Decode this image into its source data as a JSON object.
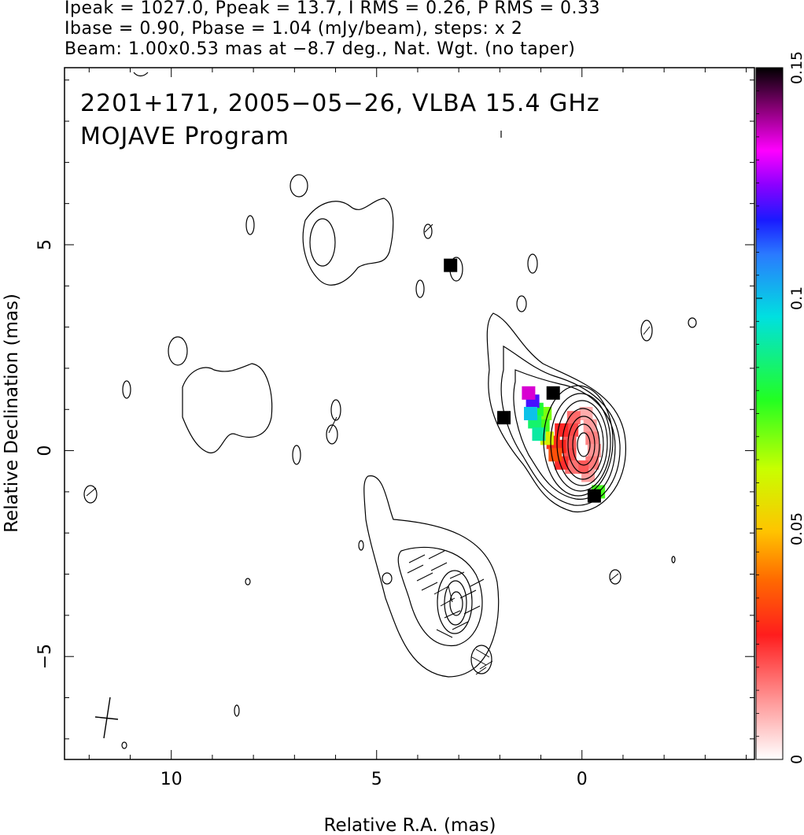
{
  "header": {
    "line1": "Ipeak = 1027.0, Ppeak = 13.7, I RMS = 0.26, P RMS = 0.33",
    "line2": "Ibase = 0.90, Pbase = 1.04 (mJy/beam), steps: x 2",
    "line3": "Beam: 1.00x0.53 mas at −8.7 deg., Nat. Wgt. (no taper)"
  },
  "chart_data": {
    "type": "heatmap",
    "title": "2201+171, 2005−05−26, VLBA 15.4 GHz",
    "subtitle": "MOJAVE Program",
    "xlabel": "Relative R.A. (mas)",
    "ylabel": "Relative Declination (mas)",
    "xlim": [
      12.6,
      -4.2
    ],
    "ylim": [
      -7.5,
      9.3
    ],
    "x_ticks": [
      {
        "value": 10,
        "label": "10"
      },
      {
        "value": 5,
        "label": "5"
      },
      {
        "value": 0,
        "label": "0"
      }
    ],
    "y_ticks": [
      {
        "value": 5,
        "label": "5"
      },
      {
        "value": 0,
        "label": "0"
      },
      {
        "value": -5,
        "label": "−5"
      }
    ],
    "colorbar": {
      "min": 0,
      "max": 0.15,
      "ticks": [
        {
          "value": 0,
          "label": "0"
        },
        {
          "value": 0.05,
          "label": "0.05"
        },
        {
          "value": 0.1,
          "label": "0.1"
        },
        {
          "value": 0.15,
          "label": "0.15"
        }
      ]
    },
    "components": [
      {
        "x": 0.1,
        "y": 0.1,
        "nested_contours": 10,
        "width": 2.6,
        "height": 4.0
      },
      {
        "x": 3.3,
        "y": -3.8,
        "nested_contours": 4,
        "width": 1.8,
        "height": 2.6
      }
    ],
    "polarization_pixels": [
      {
        "x": -0.1,
        "y": 0.9,
        "value": 0.01
      },
      {
        "x": -0.2,
        "y": 0.6,
        "value": 0.012
      },
      {
        "x": -0.25,
        "y": 0.3,
        "value": 0.015
      },
      {
        "x": -0.3,
        "y": 0.0,
        "value": 0.013
      },
      {
        "x": -0.25,
        "y": -0.3,
        "value": 0.016
      },
      {
        "x": -0.15,
        "y": -0.6,
        "value": 0.012
      },
      {
        "x": 0.0,
        "y": -0.4,
        "value": 0.02
      },
      {
        "x": 0.2,
        "y": 0.8,
        "value": 0.018
      },
      {
        "x": 0.25,
        "y": 0.5,
        "value": 0.022
      },
      {
        "x": 0.3,
        "y": 0.2,
        "value": 0.02
      },
      {
        "x": 0.3,
        "y": -0.1,
        "value": 0.021
      },
      {
        "x": 0.25,
        "y": -0.4,
        "value": 0.017
      },
      {
        "x": 0.5,
        "y": 0.5,
        "value": 0.026
      },
      {
        "x": 0.55,
        "y": 0.1,
        "value": 0.028
      },
      {
        "x": 0.5,
        "y": -0.3,
        "value": 0.025
      },
      {
        "x": 0.7,
        "y": 0.2,
        "value": 0.03
      },
      {
        "x": 0.65,
        "y": -0.1,
        "value": 0.035
      },
      {
        "x": 0.9,
        "y": 0.9,
        "value": 0.07
      },
      {
        "x": 0.95,
        "y": 0.6,
        "value": 0.075
      },
      {
        "x": 0.85,
        "y": 0.3,
        "value": 0.06
      },
      {
        "x": 1.1,
        "y": 1.0,
        "value": 0.08
      },
      {
        "x": 1.15,
        "y": 0.7,
        "value": 0.085
      },
      {
        "x": 1.2,
        "y": 1.2,
        "value": 0.12
      },
      {
        "x": 1.3,
        "y": 1.4,
        "value": 0.135
      },
      {
        "x": 1.25,
        "y": 0.9,
        "value": 0.1
      },
      {
        "x": 1.05,
        "y": 0.4,
        "value": 0.09
      },
      {
        "x": 0.7,
        "y": 1.4,
        "value": 0.15
      },
      {
        "x": 1.9,
        "y": 0.8,
        "value": 0.15
      },
      {
        "x": -0.4,
        "y": -1.0,
        "value": 0.075
      },
      {
        "x": -0.3,
        "y": -1.1,
        "value": 0.15
      },
      {
        "x": 3.2,
        "y": 4.5,
        "value": 0.15
      }
    ],
    "grid": false,
    "legend": "colorbar right"
  },
  "colors": {
    "contour": "#000000",
    "colorbar_stops": [
      "#ffffff",
      "#ff9d9d",
      "#ff1d1d",
      "#ff6a00",
      "#ffc400",
      "#c8ff00",
      "#22ff22",
      "#00e0e0",
      "#2a7aff",
      "#1a1aff",
      "#8a00ff",
      "#ff00ff",
      "#8a0078",
      "#000000"
    ]
  }
}
